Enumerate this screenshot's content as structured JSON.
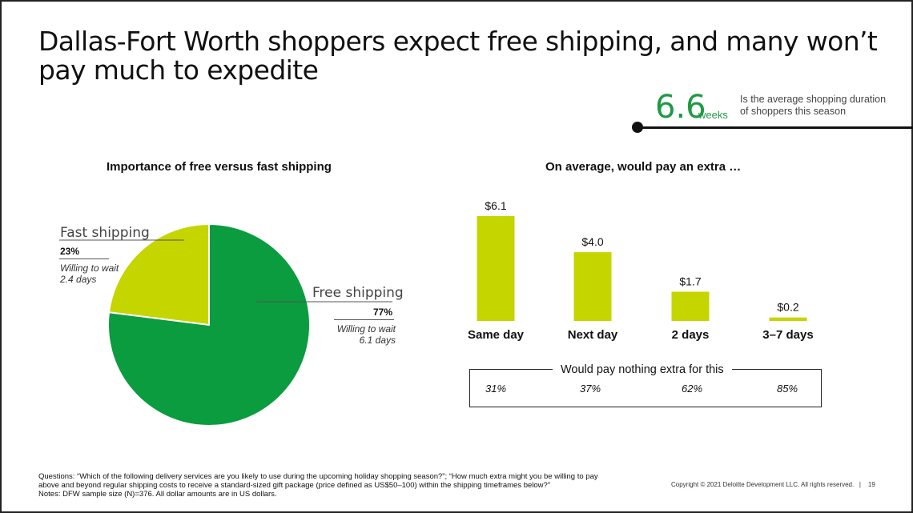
{
  "slide": {
    "title": "Dallas-Fort Worth shoppers expect free shipping, and many won’t pay much to expedite",
    "kpi": {
      "value": "6.6",
      "unit": "weeks",
      "description_line1": "Is the average shopping duration",
      "description_line2": "of shoppers this season"
    },
    "footnote": {
      "line1": "Questions: “Which of the following delivery services are you likely to use during the upcoming holiday shopping season?”; “How much extra might you be willing to pay",
      "line2": "above and beyond regular shipping costs to receive a standard-sized gift package (price defined as US$50–100) within the shipping timeframes below?”",
      "line3": "Notes: DFW sample size (N)=376. All dollar amounts are in US dollars."
    },
    "copyright": "Copyright © 2021 Deloitte Development LLC. All rights reserved.",
    "page_number": "19"
  },
  "chart_data": [
    {
      "type": "pie",
      "title": "Importance of free versus fast shipping",
      "categories": [
        "Fast shipping",
        "Free shipping"
      ],
      "values": [
        23,
        77
      ],
      "labels": [
        "23%",
        "77%"
      ],
      "notes": [
        "Willing to wait 2.4 days",
        "Willing to wait 6.1 days"
      ],
      "colors": [
        "#c5d500",
        "#0a9c3f"
      ]
    },
    {
      "type": "bar",
      "title": "On average, would pay an extra …",
      "categories": [
        "Same day",
        "Next day",
        "2 days",
        "3–7 days"
      ],
      "values": [
        6.1,
        4.0,
        1.7,
        0.2
      ],
      "value_labels": [
        "$6.1",
        "$4.0",
        "$1.7",
        "$0.2"
      ],
      "ylim": [
        0,
        6.1
      ],
      "color": "#c5d500",
      "pay_nothing": {
        "title": "Would pay nothing extra for this",
        "values": [
          "31%",
          "37%",
          "62%",
          "85%"
        ]
      }
    }
  ]
}
